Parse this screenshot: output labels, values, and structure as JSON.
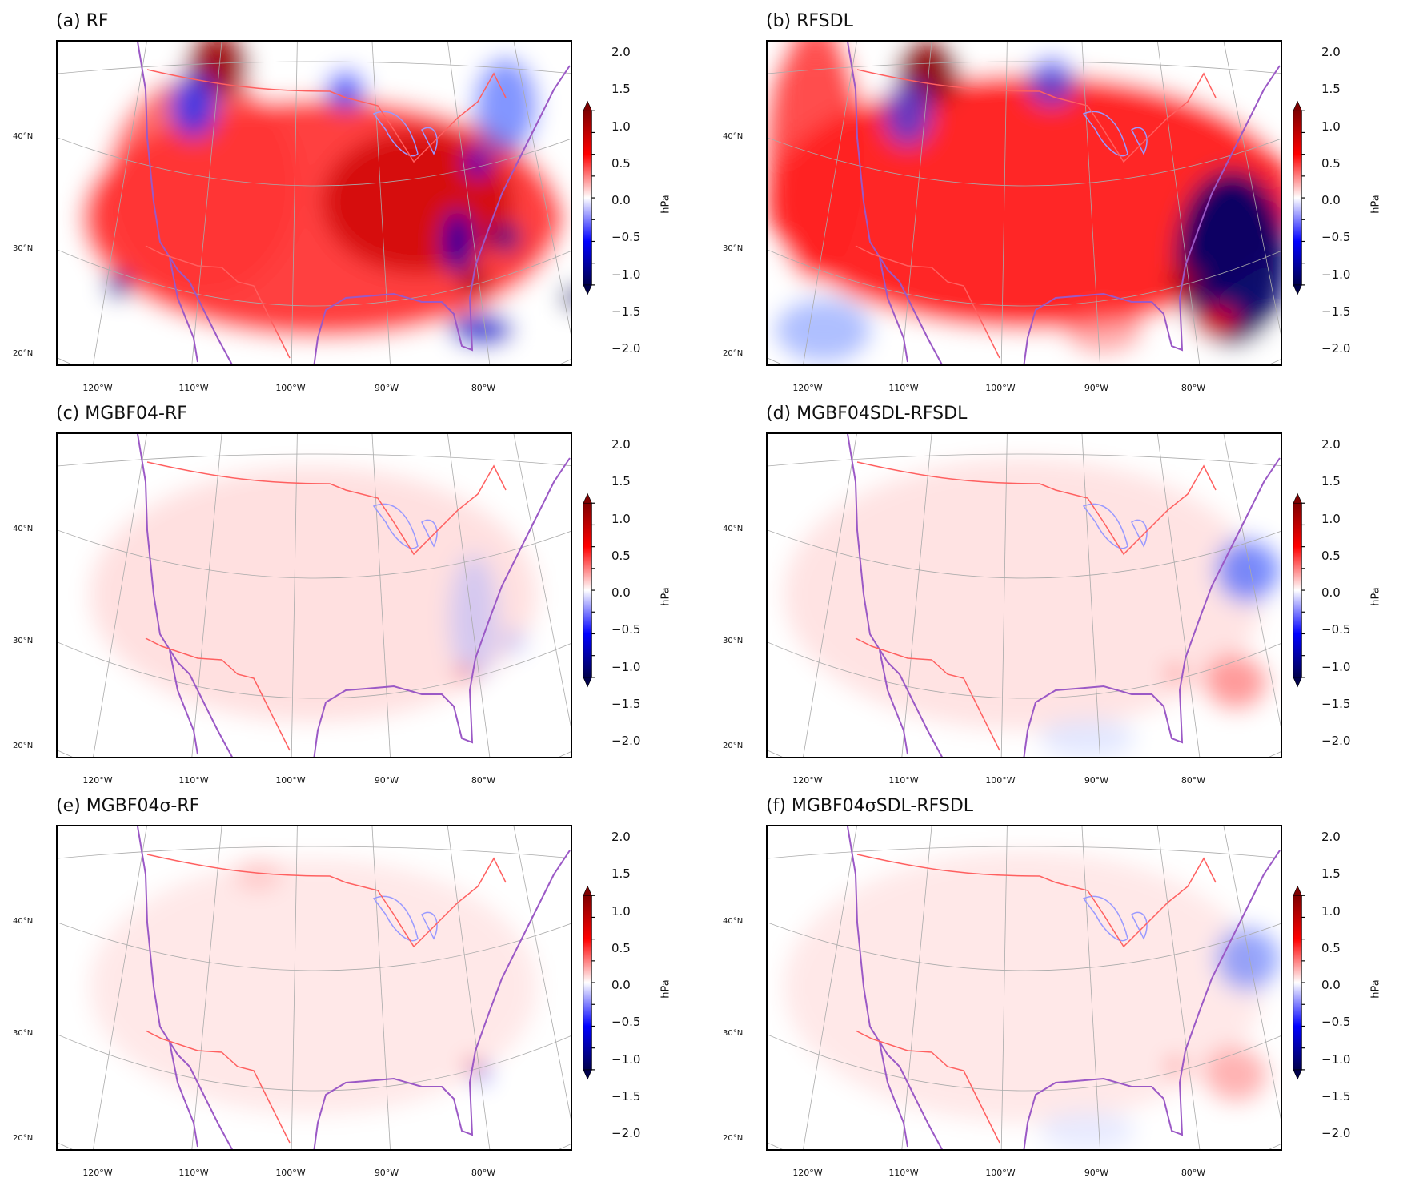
{
  "chart_data": [
    {
      "type": "heatmap",
      "title": "(a) RF",
      "colorbar_label": "hPa"
    },
    {
      "type": "heatmap",
      "title": "(b) RFSDL",
      "colorbar_label": "hPa"
    },
    {
      "type": "heatmap",
      "title": "(c) MGBF04-RF",
      "colorbar_label": "hPa"
    },
    {
      "type": "heatmap",
      "title": "(d) MGBF04SDL-RFSDL",
      "colorbar_label": "hPa"
    },
    {
      "type": "heatmap",
      "title": "(e) MGBF04σ-RF",
      "colorbar_label": "hPa"
    },
    {
      "type": "heatmap",
      "title": "(f) MGBF04σSDL-RFSDL",
      "colorbar_label": "hPa"
    }
  ],
  "shared": {
    "lat_ticks": [
      "20°N",
      "30°N",
      "40°N"
    ],
    "lon_ticks": [
      "120°W",
      "110°W",
      "100°W",
      "90°W",
      "80°W"
    ],
    "colorbar_ticks": [
      "2.0",
      "1.5",
      "1.0",
      "0.5",
      "0.0",
      "−0.5",
      "−1.0",
      "−1.5",
      "−2.0"
    ],
    "colorbar_range": [
      -2.0,
      2.0
    ],
    "colorbar_extend": "both",
    "colormap": "seismic",
    "colormap_stops": [
      "#00004c",
      "#0000ff",
      "#ffffff",
      "#ff0000",
      "#800000"
    ],
    "coastline_color": "#9b59c6",
    "border_color": "#ff6060",
    "lakes_color": "#9999ff",
    "grid_color": "#aaaaaa"
  }
}
